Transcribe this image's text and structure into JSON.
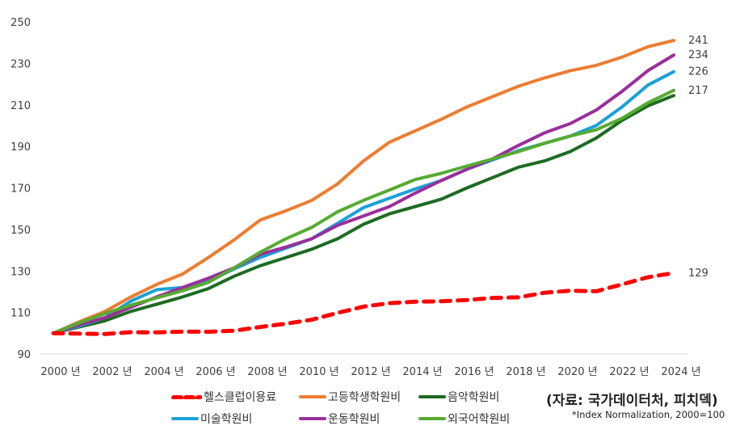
{
  "chart_data": {
    "type": "line",
    "title": "",
    "xlabel": "",
    "ylabel": "",
    "ylim": [
      90,
      250
    ],
    "yticks": [
      90,
      110,
      130,
      150,
      170,
      190,
      210,
      230,
      250
    ],
    "ytick_labels": [
      "90",
      "110",
      "130",
      "150",
      "170",
      "190",
      "210",
      "230",
      "250"
    ],
    "x": [
      2000,
      2001,
      2002,
      2003,
      2004,
      2005,
      2006,
      2007,
      2008,
      2009,
      2010,
      2011,
      2012,
      2013,
      2014,
      2015,
      2016,
      2017,
      2018,
      2019,
      2020,
      2021,
      2022,
      2023,
      2024
    ],
    "xtick_labels": [
      "2000 년",
      "2002 년",
      "2004 년",
      "2006 년",
      "2008 년",
      "2010 년",
      "2012 년",
      "2014 년",
      "2016 년",
      "2018 년",
      "2020 년",
      "2022 년",
      "2024 년"
    ],
    "grid": false,
    "legend_position": "bottom",
    "series": [
      {
        "name": "헬스클럽이용료",
        "color": "#ff0000",
        "style": "dashed",
        "end_label": "129",
        "values": [
          100,
          99.8,
          99.6,
          100.5,
          100.4,
          100.8,
          100.7,
          101.2,
          103,
          104.6,
          106.5,
          109.8,
          112.8,
          114.5,
          115.2,
          115.4,
          116,
          117,
          117.3,
          119.5,
          120.5,
          120.2,
          123.5,
          127,
          129
        ]
      },
      {
        "name": "고등학생학원비",
        "color": "#ed7d31",
        "style": "solid",
        "end_label": "241",
        "values": [
          100,
          105.5,
          110.5,
          117.5,
          123.5,
          128.5,
          136.5,
          145,
          154.5,
          159,
          164,
          172,
          183,
          192,
          197.5,
          203,
          209,
          214,
          219,
          223,
          226.5,
          229,
          233,
          238,
          241
        ]
      },
      {
        "name": "음악학원비",
        "color": "#1e6b23",
        "style": "solid",
        "values": [
          100,
          103,
          106,
          110.5,
          114,
          117.5,
          121.5,
          127.5,
          132.5,
          136.5,
          140.5,
          145.5,
          152.5,
          157.5,
          161,
          164.5,
          170,
          175,
          180,
          183,
          187.5,
          194,
          202.5,
          209.5,
          214.5
        ]
      },
      {
        "name": "미술학원비",
        "color": "#1ba1d8",
        "style": "solid",
        "end_label": "226",
        "values": [
          100,
          103.5,
          107.5,
          115.5,
          121,
          122,
          125,
          131,
          136.5,
          141,
          145.5,
          153,
          160.5,
          165,
          169.5,
          173.5,
          179,
          183.5,
          188,
          191.5,
          195,
          200,
          209,
          219.5,
          226
        ]
      },
      {
        "name": "운동학원비",
        "color": "#9b2f9b",
        "style": "solid",
        "end_label": "234",
        "values": [
          100,
          104,
          107.5,
          112.5,
          117.5,
          122,
          126.5,
          131.5,
          138,
          141.5,
          145.5,
          152,
          156.5,
          161,
          167.5,
          173.5,
          179,
          184,
          190.5,
          196.5,
          201,
          207.5,
          216.5,
          226.5,
          234
        ]
      },
      {
        "name": "외국어학원비",
        "color": "#56ab32",
        "style": "solid",
        "end_label": "217",
        "values": [
          100,
          105,
          109.5,
          113.5,
          117,
          120.5,
          124.5,
          131.5,
          139,
          145.5,
          151,
          158.5,
          164,
          169,
          174,
          177,
          180.5,
          184,
          187.5,
          191.5,
          195,
          198,
          203.5,
          211,
          217
        ]
      }
    ]
  },
  "legend": {
    "items": [
      {
        "label": "헬스클럽이용료",
        "color": "#ff0000",
        "style": "dashed"
      },
      {
        "label": "고등학생학원비",
        "color": "#ed7d31",
        "style": "solid"
      },
      {
        "label": "음악학원비",
        "color": "#1e6b23",
        "style": "solid"
      },
      {
        "label": "미술학원비",
        "color": "#1ba1d8",
        "style": "solid"
      },
      {
        "label": "운동학원비",
        "color": "#9b2f9b",
        "style": "solid"
      },
      {
        "label": "외국어학원비",
        "color": "#56ab32",
        "style": "solid"
      }
    ]
  },
  "source": "(자료: 국가데이터처, 피치덱)",
  "note": "*Index Normalization, 2000=100"
}
